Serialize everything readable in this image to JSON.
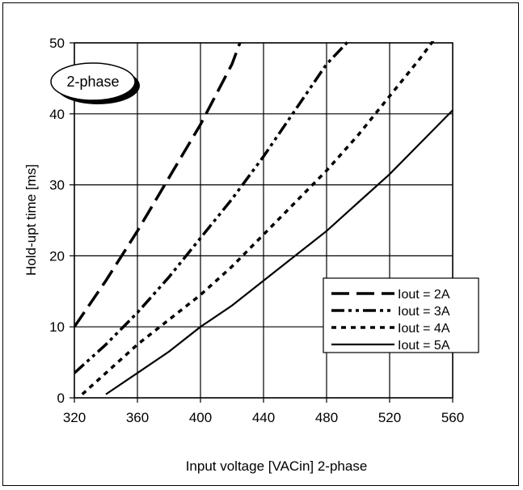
{
  "chart_data": {
    "type": "line",
    "title": "",
    "xlabel": "Input voltage [VACin] 2-phase",
    "ylabel": "Hold-upt time [ms]",
    "xlim": [
      320,
      560
    ],
    "ylim": [
      0,
      50
    ],
    "x_ticks": [
      320,
      360,
      400,
      440,
      480,
      520,
      560
    ],
    "y_ticks": [
      0,
      10,
      20,
      30,
      40,
      50
    ],
    "grid": true,
    "legend_position": "lower-right",
    "annotation": "2-phase",
    "series": [
      {
        "name": "Iout = 2A",
        "style": "long-dash",
        "x": [
          320,
          340,
          360,
          380,
          400,
          420,
          425
        ],
        "y": [
          10,
          16.5,
          23.5,
          31,
          38.5,
          47,
          50
        ]
      },
      {
        "name": "Iout = 3A",
        "style": "dash-dot-dot",
        "x": [
          320,
          340,
          360,
          380,
          400,
          420,
          440,
          460,
          480,
          495
        ],
        "y": [
          3.5,
          7.5,
          12,
          17,
          22.5,
          28,
          34,
          40.5,
          47,
          50.5
        ]
      },
      {
        "name": "Iout = 4A",
        "style": "short-dash",
        "x": [
          325,
          340,
          360,
          380,
          400,
          420,
          440,
          460,
          480,
          500,
          520,
          540,
          550
        ],
        "y": [
          0.5,
          3.5,
          7.5,
          11,
          14.5,
          18.5,
          23,
          27.5,
          32,
          37,
          42.5,
          48,
          51
        ]
      },
      {
        "name": "Iout = 5A",
        "style": "solid",
        "x": [
          340,
          360,
          380,
          400,
          420,
          440,
          460,
          480,
          500,
          520,
          540,
          560
        ],
        "y": [
          0.5,
          3.5,
          6.5,
          10,
          13,
          16.5,
          20,
          23.5,
          27.5,
          31.5,
          36,
          40.5
        ]
      }
    ]
  }
}
